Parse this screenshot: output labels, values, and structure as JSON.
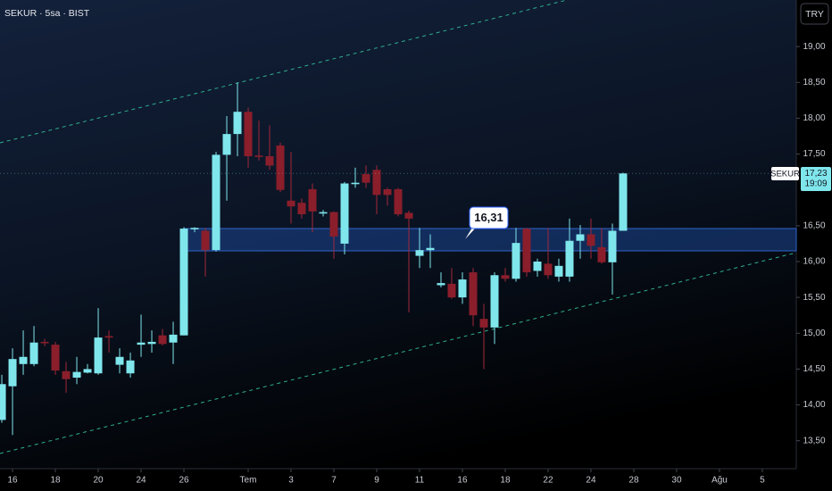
{
  "chart_data": {
    "type": "candlestick",
    "title": "SEKUR · 5sa · BIST",
    "currency": "TRY",
    "open": [
      13.79,
      14.26,
      14.57,
      14.57,
      14.88,
      14.84,
      14.47,
      14.38,
      14.45,
      14.44,
      14.96,
      14.56,
      14.44,
      14.84,
      14.85,
      14.97,
      14.87,
      14.97,
      16.45,
      16.43,
      16.16,
      17.49,
      17.78,
      18.09,
      17.48,
      17.47,
      17.62,
      16.85,
      16.82,
      17.01,
      16.67,
      16.69,
      16.25,
      17.08,
      17.22,
      17.28,
      17.01,
      17.01,
      16.68,
      16.08,
      16.16,
      15.67,
      15.69,
      15.5,
      15.85,
      15.2,
      15.08,
      15.81,
      15.76,
      16.46,
      15.87,
      15.97,
      15.79,
      15.79,
      16.29,
      16.38,
      16.2,
      15.99,
      16.43
    ],
    "high": [
      14.42,
      14.79,
      15.04,
      15.1,
      14.92,
      14.88,
      14.6,
      14.67,
      14.57,
      15.35,
      15.04,
      14.79,
      14.73,
      15.26,
      15.04,
      15.06,
      15.16,
      16.48,
      16.48,
      16.47,
      17.53,
      18.03,
      18.5,
      18.15,
      17.97,
      17.9,
      17.66,
      17.53,
      16.88,
      17.09,
      16.72,
      16.7,
      17.11,
      17.31,
      17.34,
      17.34,
      17.03,
      17.03,
      16.71,
      16.47,
      16.38,
      15.85,
      15.91,
      15.85,
      15.91,
      15.41,
      15.85,
      15.91,
      16.47,
      16.47,
      16.04,
      16.47,
      16.04,
      16.6,
      16.51,
      16.6,
      16.47,
      16.53,
      17.24
    ],
    "low": [
      13.75,
      13.58,
      14.42,
      14.54,
      14.82,
      14.42,
      14.17,
      14.29,
      14.44,
      14.42,
      14.73,
      14.44,
      14.38,
      14.67,
      14.73,
      14.83,
      14.57,
      14.97,
      16.41,
      15.79,
      16.14,
      16.85,
      17.47,
      17.31,
      17.41,
      17.28,
      16.97,
      16.53,
      16.6,
      16.41,
      16.63,
      16.04,
      16.1,
      17.03,
      17.03,
      16.66,
      16.78,
      16.63,
      15.29,
      15.91,
      15.91,
      15.64,
      15.48,
      15.41,
      15.1,
      14.5,
      14.85,
      15.72,
      15.72,
      15.79,
      15.79,
      15.76,
      15.72,
      15.72,
      16.04,
      16.04,
      15.97,
      15.54,
      16.43
    ],
    "close": [
      14.29,
      14.64,
      14.67,
      14.87,
      14.86,
      14.48,
      14.36,
      14.46,
      14.5,
      14.94,
      14.94,
      14.67,
      14.62,
      14.87,
      14.88,
      14.85,
      14.98,
      16.46,
      16.47,
      16.16,
      17.49,
      17.78,
      18.09,
      17.47,
      17.46,
      17.34,
      17.0,
      16.77,
      16.66,
      16.7,
      16.69,
      16.35,
      17.09,
      17.1,
      17.1,
      16.93,
      16.93,
      16.66,
      16.6,
      16.16,
      16.19,
      15.7,
      15.5,
      15.75,
      15.25,
      15.08,
      15.81,
      15.76,
      16.26,
      15.85,
      16.0,
      15.81,
      15.94,
      16.29,
      16.38,
      16.22,
      15.99,
      16.43,
      17.23
    ],
    "up_color": "#7fe6ec",
    "down_color": "#8b1e2b",
    "ylim": [
      13.11,
      19.65
    ],
    "yticks": [
      {
        "value": 13.5,
        "label": "13,50"
      },
      {
        "value": 14,
        "label": "14,00"
      },
      {
        "value": 14.5,
        "label": "14,50"
      },
      {
        "value": 15,
        "label": "15,00"
      },
      {
        "value": 15.5,
        "label": "15,50"
      },
      {
        "value": 16,
        "label": "16,00"
      },
      {
        "value": 16.5,
        "label": "16,50"
      },
      {
        "value": 17.5,
        "label": "17,50"
      },
      {
        "value": 18,
        "label": "18,00"
      },
      {
        "value": 18.5,
        "label": "18,50"
      },
      {
        "value": 19,
        "label": "19,00"
      }
    ],
    "xlim": [
      -0.17,
      74.17
    ],
    "xticks": [
      {
        "value": 1,
        "label": "16"
      },
      {
        "value": 5,
        "label": "18"
      },
      {
        "value": 9,
        "label": "20"
      },
      {
        "value": 13,
        "label": "24"
      },
      {
        "value": 17,
        "label": "26"
      },
      {
        "value": 23,
        "label": "Tem"
      },
      {
        "value": 27,
        "label": "3"
      },
      {
        "value": 31,
        "label": "7"
      },
      {
        "value": 35,
        "label": "9"
      },
      {
        "value": 39,
        "label": "11"
      },
      {
        "value": 43,
        "label": "16"
      },
      {
        "value": 47,
        "label": "18"
      },
      {
        "value": 51,
        "label": "22"
      },
      {
        "value": 55,
        "label": "24"
      },
      {
        "value": 59,
        "label": "28"
      },
      {
        "value": 63,
        "label": "30"
      },
      {
        "value": 67,
        "label": "Ağu"
      },
      {
        "value": 71,
        "label": "5"
      }
    ],
    "last_price": {
      "symbol": "SEKUR",
      "label": "17,23",
      "time": "19:09"
    },
    "annotations": [
      "16,31"
    ]
  }
}
